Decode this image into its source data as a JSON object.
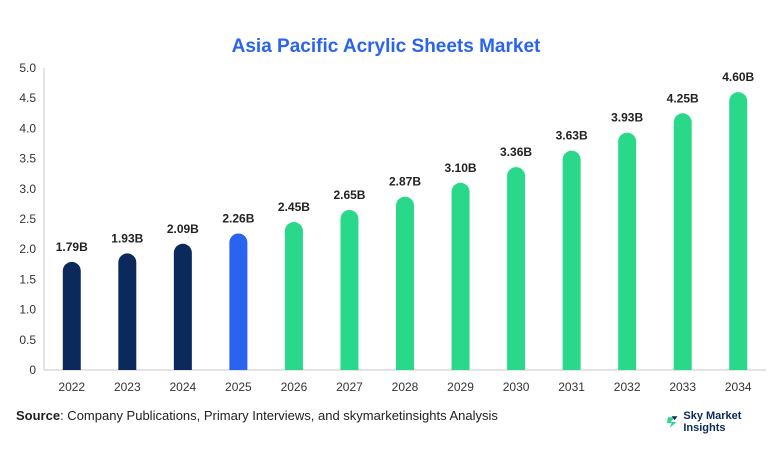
{
  "chart_data": {
    "type": "bar",
    "title": "Asia Pacific Acrylic Sheets Market",
    "categories": [
      "2022",
      "2023",
      "2024",
      "2025",
      "2026",
      "2027",
      "2028",
      "2029",
      "2030",
      "2031",
      "2032",
      "2033",
      "2034"
    ],
    "values": [
      1.79,
      1.93,
      2.09,
      2.26,
      2.45,
      2.65,
      2.87,
      3.1,
      3.36,
      3.63,
      3.93,
      4.25,
      4.6
    ],
    "data_labels": [
      "1.79B",
      "1.93B",
      "2.09B",
      "2.26B",
      "2.45B",
      "2.65B",
      "2.87B",
      "3.10B",
      "3.36B",
      "3.63B",
      "3.93B",
      "4.25B",
      "4.60B"
    ],
    "bar_colors": [
      "#0b2a5b",
      "#0b2a5b",
      "#0b2a5b",
      "#2a63f0",
      "#29d889",
      "#29d889",
      "#29d889",
      "#29d889",
      "#29d889",
      "#29d889",
      "#29d889",
      "#29d889",
      "#29d889"
    ],
    "ylim": [
      0,
      5.0
    ],
    "yticks": [
      "0",
      "0.5",
      "1.0",
      "1.5",
      "2.0",
      "2.5",
      "3.0",
      "3.5",
      "4.0",
      "4.5",
      "5.0"
    ],
    "grid": false,
    "title_color": "#2a63f0"
  },
  "footer": {
    "source_label": "Source",
    "source_text": ": Company Publications, Primary Interviews, and skymarketinsights Analysis",
    "brand_name": "Sky Market Insights",
    "brand_icon": "brand-logo-icon"
  }
}
